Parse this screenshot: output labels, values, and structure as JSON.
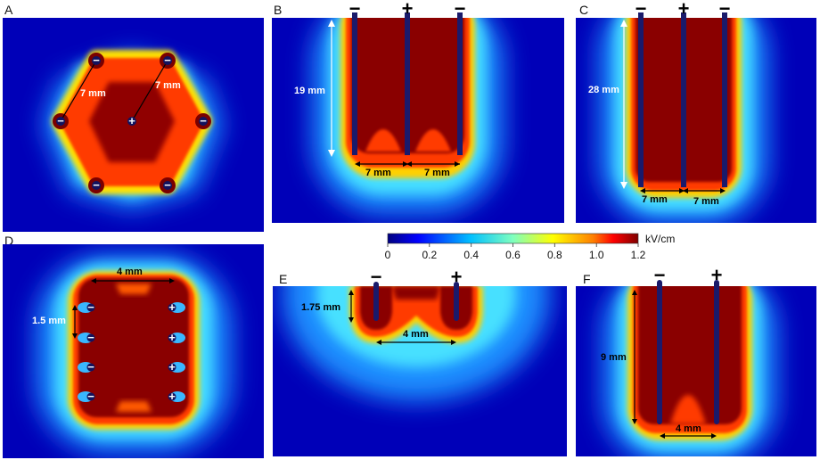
{
  "panels": [
    {
      "letter": "A"
    },
    {
      "letter": "B"
    },
    {
      "letter": "C"
    },
    {
      "letter": "D"
    },
    {
      "letter": "E"
    },
    {
      "letter": "F"
    }
  ],
  "dimensions": {
    "a_spacing_left": "7 mm",
    "a_spacing_right": "7 mm",
    "b_depth": "19 mm",
    "b_spacing_left": "7 mm",
    "b_spacing_right": "7 mm",
    "c_depth": "28 mm",
    "c_spacing_left": "7 mm",
    "c_spacing_right": "7 mm",
    "d_width": "4 mm",
    "d_pitch": "1.5 mm",
    "e_depth": "1.75 mm",
    "e_spacing": "4 mm",
    "f_depth": "9 mm",
    "f_spacing": "4 mm"
  },
  "signs": {
    "minus": "−",
    "plus": "+"
  },
  "colorbar": {
    "ticks": [
      "0",
      "0.2",
      "0.4",
      "0.6",
      "0.8",
      "1.0",
      "1.2"
    ],
    "unit": "kV/cm",
    "colors": [
      "#00007f",
      "#0000ff",
      "#00bfff",
      "#7fffbf",
      "#ffff00",
      "#ff7f00",
      "#ff0000",
      "#7f0000"
    ]
  }
}
